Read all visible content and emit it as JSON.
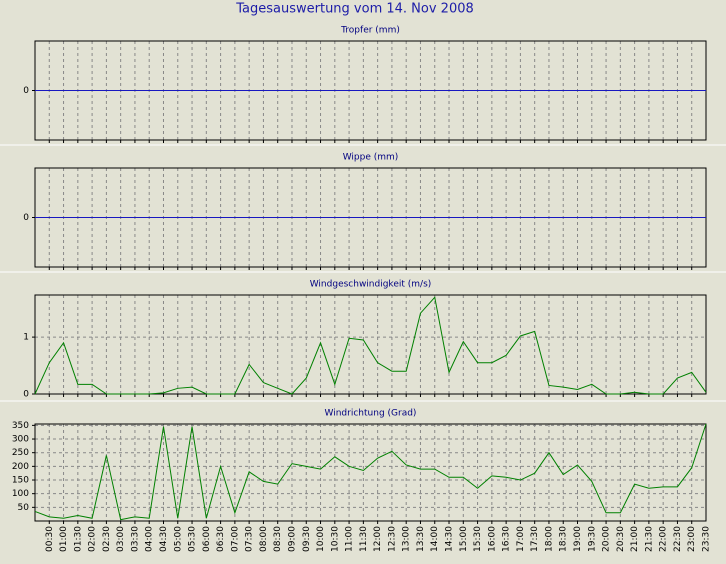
{
  "title": "Tagesauswertung vom 14. Nov 2008",
  "chart_data": [
    {
      "type": "line",
      "title": "Tropfer (mm)",
      "color": "#1818c0",
      "grid": true,
      "ylim": [
        -1,
        1
      ],
      "yticks": [
        0
      ],
      "values": [
        0,
        0,
        0,
        0,
        0,
        0,
        0,
        0,
        0,
        0,
        0,
        0,
        0,
        0,
        0,
        0,
        0,
        0,
        0,
        0,
        0,
        0,
        0,
        0,
        0,
        0,
        0,
        0,
        0,
        0,
        0,
        0,
        0,
        0,
        0,
        0,
        0,
        0,
        0,
        0,
        0,
        0,
        0,
        0,
        0,
        0,
        0,
        0
      ]
    },
    {
      "type": "line",
      "title": "Wippe (mm)",
      "color": "#1818c0",
      "grid": true,
      "ylim": [
        -1,
        1
      ],
      "yticks": [
        0
      ],
      "values": [
        0,
        0,
        0,
        0,
        0,
        0,
        0,
        0,
        0,
        0,
        0,
        0,
        0,
        0,
        0,
        0,
        0,
        0,
        0,
        0,
        0,
        0,
        0,
        0,
        0,
        0,
        0,
        0,
        0,
        0,
        0,
        0,
        0,
        0,
        0,
        0,
        0,
        0,
        0,
        0,
        0,
        0,
        0,
        0,
        0,
        0,
        0,
        0
      ]
    },
    {
      "type": "line",
      "title": "Windgeschwindigkeit (m/s)",
      "color": "#008000",
      "grid": true,
      "ylim": [
        0,
        1.74
      ],
      "yticks": [
        0,
        1
      ],
      "values": [
        0,
        0.55,
        0.9,
        0.17,
        0.17,
        0,
        0,
        0,
        0,
        0.02,
        0.1,
        0.12,
        0,
        0,
        0,
        0.52,
        0.2,
        0.1,
        0,
        0.28,
        0.9,
        0.17,
        0.98,
        0.95,
        0.55,
        0.4,
        0.4,
        1.42,
        1.7,
        0.38,
        0.92,
        0.55,
        0.55,
        0.68,
        1.02,
        1.1,
        0.15,
        0.12,
        0.08,
        0.17,
        0,
        0,
        0.03,
        0,
        0,
        0.28,
        0.38,
        0.03
      ]
    },
    {
      "type": "line",
      "title": "Windrichtung (Grad)",
      "color": "#008000",
      "grid": true,
      "ylim": [
        0,
        355
      ],
      "yticks": [
        50,
        100,
        150,
        200,
        250,
        300,
        350
      ],
      "categories": [
        null,
        "00:30",
        "01:00",
        "01:30",
        "02:00",
        "02:30",
        "03:00",
        "03:30",
        "04:00",
        "04:30",
        "05:00",
        "05:30",
        "06:00",
        "06:30",
        "07:00",
        "07:30",
        "08:00",
        "08:30",
        "09:00",
        "09:30",
        "10:00",
        "10:30",
        "11:00",
        "11:30",
        "12:00",
        "12:30",
        "13:00",
        "13:30",
        "14:00",
        "14:30",
        "15:00",
        "15:30",
        "16:00",
        "16:30",
        "17:00",
        "17:30",
        "18:00",
        "18:30",
        "19:00",
        "19:30",
        "20:00",
        "20:30",
        "21:00",
        "21:30",
        "22:00",
        "22:30",
        "23:00",
        "23:30"
      ],
      "values": [
        35,
        15,
        10,
        20,
        10,
        240,
        5,
        15,
        10,
        345,
        10,
        345,
        10,
        200,
        30,
        180,
        145,
        135,
        210,
        200,
        190,
        235,
        200,
        185,
        230,
        255,
        205,
        190,
        190,
        160,
        160,
        120,
        165,
        160,
        150,
        175,
        250,
        170,
        205,
        145,
        30,
        30,
        135,
        120,
        125,
        125,
        195,
        355
      ]
    }
  ]
}
